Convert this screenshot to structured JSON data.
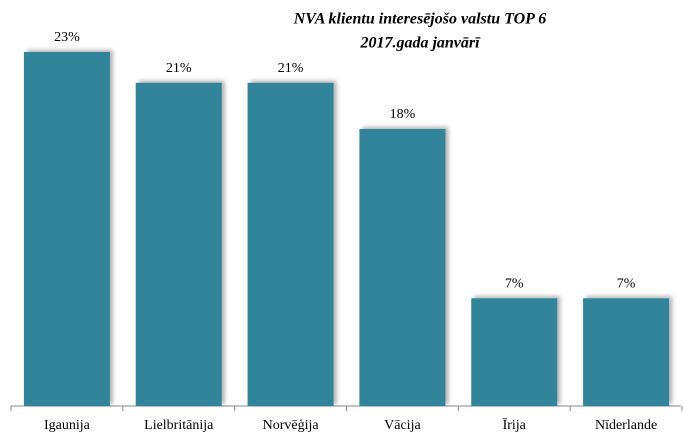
{
  "chart_data": {
    "type": "bar",
    "title": "NVA klientu interesējošo valstu TOP 6",
    "subtitle": "2017.gada janvārī",
    "categories": [
      "Igaunija",
      "Lielbritānija",
      "Norvēģija",
      "Vācija",
      "Īrija",
      "Nīderlande"
    ],
    "values": [
      23,
      21,
      21,
      18,
      7,
      7
    ],
    "value_labels": [
      "23%",
      "21%",
      "21%",
      "18%",
      "7%",
      "7%"
    ],
    "color": "#31849b"
  }
}
